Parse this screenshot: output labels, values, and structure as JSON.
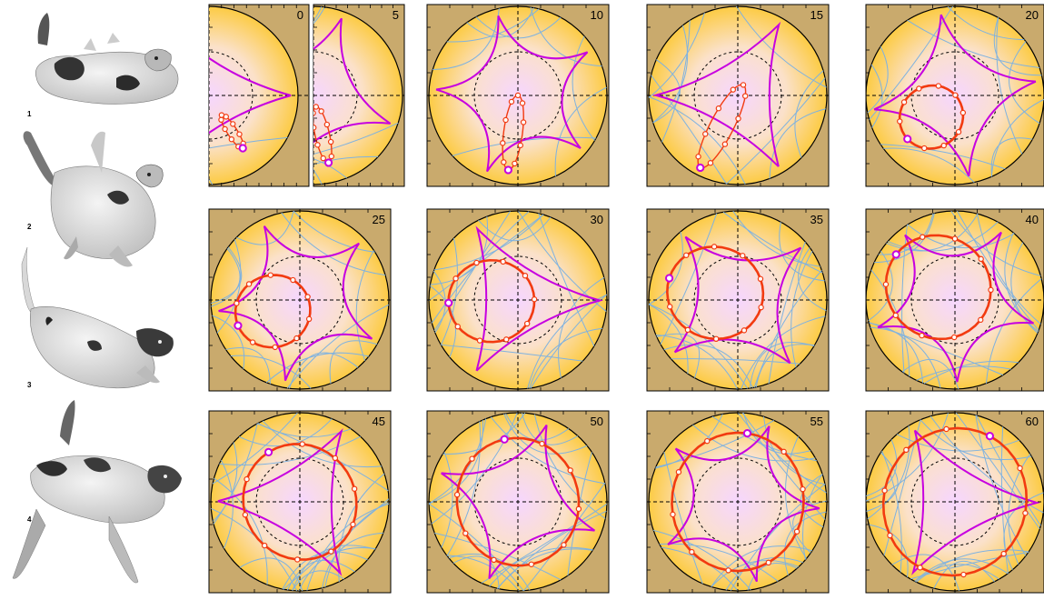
{
  "photo_labels": [
    "1",
    "2",
    "3",
    "4"
  ],
  "frame_labels": [
    "0",
    "5",
    "10",
    "15",
    "20",
    "25",
    "30",
    "35",
    "40",
    "45",
    "50",
    "55",
    "60"
  ],
  "colors": {
    "tile_background": "#c9aa6d",
    "disk_center": "#f6d6ff",
    "disk_edge": "#fccb44",
    "guide_curves": "#7fb2e0",
    "magenta_path": "#c700e0",
    "red_loop": "#f23a10",
    "marker_fill": "#ffffff"
  },
  "icons": {
    "photos": "falling-cat-photo"
  }
}
